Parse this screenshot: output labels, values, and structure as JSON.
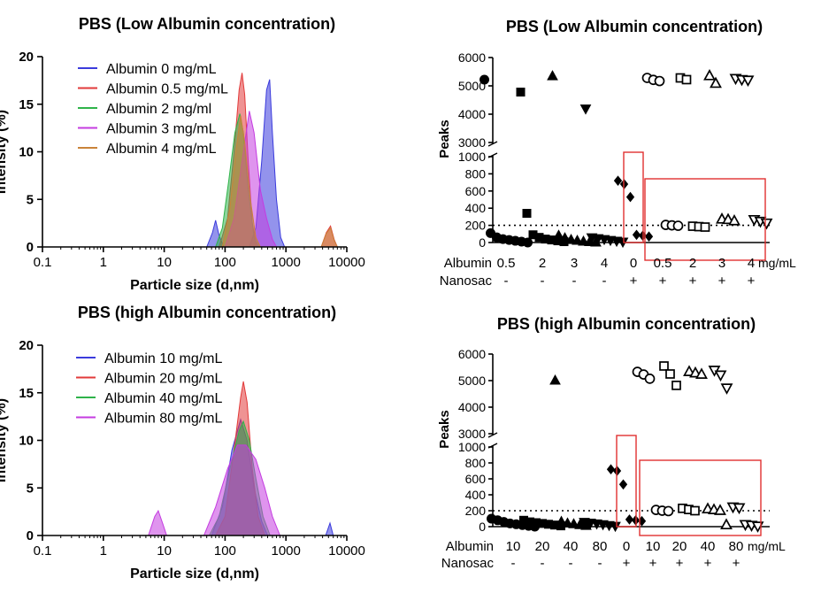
{
  "chart_data": [
    {
      "type": "area",
      "title": "PBS (Low Albumin concentration)",
      "xlabel": "Particle size (d,nm)",
      "ylabel": "Intensity (%)",
      "x_scale": "log",
      "xlim": [
        0.1,
        10000
      ],
      "ylim": [
        0,
        20
      ],
      "xticks": [
        "0.1",
        "1",
        "10",
        "100",
        "1000",
        "10000"
      ],
      "yticks": [
        "0",
        "5",
        "10",
        "15",
        "20"
      ],
      "legend_position": "top-left",
      "series": [
        {
          "name": "Albumin 0 mg/mL",
          "color": "#3b3bdc",
          "points": [
            [
              0.1,
              0
            ],
            [
              50,
              0
            ],
            [
              62,
              1.5
            ],
            [
              70,
              2.8
            ],
            [
              80,
              1.2
            ],
            [
              95,
              0
            ],
            [
              250,
              0
            ],
            [
              320,
              2
            ],
            [
              400,
              9
            ],
            [
              480,
              16.5
            ],
            [
              540,
              17.6
            ],
            [
              600,
              12
            ],
            [
              700,
              5
            ],
            [
              820,
              1
            ],
            [
              950,
              0
            ],
            [
              10000,
              0
            ]
          ]
        },
        {
          "name": "Albumin 0.5 mg/mL",
          "color": "#e23a3a",
          "points": [
            [
              0.1,
              0
            ],
            [
              80,
              0
            ],
            [
              110,
              3
            ],
            [
              140,
              10
            ],
            [
              170,
              16.5
            ],
            [
              190,
              18.3
            ],
            [
              210,
              16
            ],
            [
              240,
              9
            ],
            [
              280,
              2.5
            ],
            [
              330,
              0
            ],
            [
              3800,
              0
            ],
            [
              4600,
              1.5
            ],
            [
              5400,
              2.2
            ],
            [
              6200,
              0.8
            ],
            [
              7000,
              0
            ],
            [
              10000,
              0
            ]
          ]
        },
        {
          "name": "Albumin 2 mg/ml",
          "color": "#2fb34a",
          "points": [
            [
              0.1,
              0
            ],
            [
              70,
              0
            ],
            [
              90,
              2
            ],
            [
              115,
              7
            ],
            [
              145,
              12
            ],
            [
              175,
              14
            ],
            [
              200,
              12
            ],
            [
              240,
              6
            ],
            [
              300,
              1
            ],
            [
              360,
              0
            ],
            [
              10000,
              0
            ]
          ]
        },
        {
          "name": "Albumin 3 mg/mL",
          "color": "#c43ce0",
          "points": [
            [
              0.1,
              0
            ],
            [
              100,
              0
            ],
            [
              140,
              3
            ],
            [
              200,
              10
            ],
            [
              250,
              14.3
            ],
            [
              300,
              12
            ],
            [
              380,
              6
            ],
            [
              480,
              3
            ],
            [
              600,
              0.8
            ],
            [
              700,
              0
            ],
            [
              10000,
              0
            ]
          ]
        },
        {
          "name": "Albumin 4 mg/mL",
          "color": "#c9843a",
          "points": [
            [
              0.1,
              0
            ],
            [
              90,
              0
            ],
            [
              120,
              4
            ],
            [
              150,
              10
            ],
            [
              180,
              13.8
            ],
            [
              210,
              11
            ],
            [
              260,
              5
            ],
            [
              320,
              1
            ],
            [
              380,
              0
            ],
            [
              3800,
              0
            ],
            [
              4600,
              1.4
            ],
            [
              5400,
              2
            ],
            [
              6200,
              0.7
            ],
            [
              7000,
              0
            ],
            [
              10000,
              0
            ]
          ]
        }
      ]
    },
    {
      "type": "area",
      "title": "PBS (high Albumin concentration)",
      "xlabel": "Particle size (d,nm)",
      "ylabel": "Intensity (%)",
      "x_scale": "log",
      "xlim": [
        0.1,
        10000
      ],
      "ylim": [
        0,
        20
      ],
      "xticks": [
        "0.1",
        "1",
        "10",
        "100",
        "1000",
        "10000"
      ],
      "yticks": [
        "0",
        "5",
        "10",
        "15",
        "20"
      ],
      "legend_position": "top-left",
      "series": [
        {
          "name": "Albumin 10 mg/mL",
          "color": "#3b3bdc",
          "points": [
            [
              0.1,
              0
            ],
            [
              60,
              0
            ],
            [
              90,
              3
            ],
            [
              130,
              9
            ],
            [
              180,
              12.2
            ],
            [
              230,
              10
            ],
            [
              300,
              5
            ],
            [
              400,
              1.5
            ],
            [
              500,
              0
            ],
            [
              4500,
              0
            ],
            [
              5300,
              1.3
            ],
            [
              6000,
              0
            ],
            [
              10000,
              0
            ]
          ]
        },
        {
          "name": "Albumin 20 mg/mL",
          "color": "#e23a3a",
          "points": [
            [
              0.1,
              0
            ],
            [
              70,
              0
            ],
            [
              100,
              2
            ],
            [
              140,
              9
            ],
            [
              180,
              14.5
            ],
            [
              200,
              16.2
            ],
            [
              230,
              14
            ],
            [
              280,
              7
            ],
            [
              350,
              2
            ],
            [
              450,
              0
            ],
            [
              10000,
              0
            ]
          ]
        },
        {
          "name": "Albumin 40 mg/mL",
          "color": "#2fb34a",
          "points": [
            [
              0.1,
              0
            ],
            [
              55,
              0
            ],
            [
              80,
              2
            ],
            [
              120,
              7
            ],
            [
              170,
              11
            ],
            [
              200,
              12
            ],
            [
              250,
              10
            ],
            [
              320,
              6
            ],
            [
              420,
              2
            ],
            [
              550,
              0
            ],
            [
              10000,
              0
            ]
          ]
        },
        {
          "name": "Albumin 80 mg/mL",
          "color": "#c43ce0",
          "points": [
            [
              0.1,
              0
            ],
            [
              5.5,
              0
            ],
            [
              7,
              2
            ],
            [
              8,
              2.6
            ],
            [
              9.5,
              1.2
            ],
            [
              11,
              0
            ],
            [
              45,
              0
            ],
            [
              70,
              3
            ],
            [
              110,
              7
            ],
            [
              160,
              9.5
            ],
            [
              220,
              9.5
            ],
            [
              320,
              8
            ],
            [
              450,
              5
            ],
            [
              600,
              2
            ],
            [
              800,
              0
            ],
            [
              10000,
              0
            ]
          ]
        }
      ]
    },
    {
      "type": "scatter",
      "title": "PBS (Low Albumin concentration)",
      "ylabel": "Peaks",
      "axis_break": true,
      "upper_ylim": [
        3000,
        6000
      ],
      "lower_ylim": [
        0,
        1000
      ],
      "upper_ticks": [
        "3000",
        "4000",
        "5000",
        "6000"
      ],
      "lower_ticks": [
        "0",
        "200",
        "400",
        "600",
        "800",
        "1000"
      ],
      "reference_line": 200,
      "row_labels": [
        "Albumin",
        "Nanosac"
      ],
      "unit": "mg/mL",
      "groups": [
        {
          "albumin": "0.5",
          "nanosac": "-",
          "marker": "circle",
          "filled": true,
          "values": [
            5220,
            110,
            60,
            40,
            30,
            20,
            10,
            0
          ]
        },
        {
          "albumin": "2",
          "nanosac": "-",
          "marker": "square",
          "filled": true,
          "values": [
            4780,
            340,
            90,
            60,
            40,
            30,
            20,
            10
          ]
        },
        {
          "albumin": "3",
          "nanosac": "-",
          "marker": "triangle-up",
          "filled": true,
          "values": [
            5340,
            80,
            50,
            30,
            20,
            10,
            5,
            0
          ]
        },
        {
          "albumin": "4",
          "nanosac": "-",
          "marker": "triangle-down",
          "filled": true,
          "values": [
            4200,
            60,
            50,
            40,
            30,
            20,
            10
          ]
        },
        {
          "albumin": "0",
          "nanosac": "+",
          "marker": "diamond",
          "filled": true,
          "values": [
            720,
            680,
            530,
            90,
            80,
            70
          ]
        },
        {
          "albumin": "0.5",
          "nanosac": "+",
          "marker": "circle",
          "filled": false,
          "values": [
            5280,
            5210,
            5170,
            205,
            200,
            195
          ]
        },
        {
          "albumin": "2",
          "nanosac": "+",
          "marker": "square",
          "filled": false,
          "values": [
            5280,
            5220,
            190,
            185,
            180
          ]
        },
        {
          "albumin": "3",
          "nanosac": "+",
          "marker": "triangle-up",
          "filled": false,
          "values": [
            5350,
            5080,
            270,
            265,
            250
          ]
        },
        {
          "albumin": "4",
          "nanosac": "+",
          "marker": "triangle-down",
          "filled": false,
          "values": [
            5270,
            5230,
            5210,
            270,
            250,
            230
          ]
        }
      ]
    },
    {
      "type": "scatter",
      "title": "PBS (high Albumin concentration)",
      "ylabel": "Peaks",
      "axis_break": true,
      "upper_ylim": [
        3000,
        6000
      ],
      "lower_ylim": [
        0,
        1000
      ],
      "upper_ticks": [
        "3000",
        "4000",
        "5000",
        "6000"
      ],
      "lower_ticks": [
        "0",
        "200",
        "400",
        "600",
        "800",
        "1000"
      ],
      "reference_line": 200,
      "row_labels": [
        "Albumin",
        "Nanosac"
      ],
      "unit": "mg/mL",
      "groups": [
        {
          "albumin": "10",
          "nanosac": "-",
          "marker": "circle",
          "filled": true,
          "values": [
            100,
            80,
            60,
            40,
            30,
            20,
            10,
            0
          ]
        },
        {
          "albumin": "20",
          "nanosac": "-",
          "marker": "square",
          "filled": true,
          "values": [
            80,
            60,
            50,
            40,
            30,
            20,
            10
          ]
        },
        {
          "albumin": "40",
          "nanosac": "-",
          "marker": "triangle-up",
          "filled": true,
          "values": [
            5000,
            60,
            40,
            30,
            20,
            10
          ]
        },
        {
          "albumin": "80",
          "nanosac": "-",
          "marker": "triangle-down",
          "filled": true,
          "values": [
            60,
            50,
            40,
            30,
            20,
            10
          ]
        },
        {
          "albumin": "0",
          "nanosac": "+",
          "marker": "diamond",
          "filled": true,
          "values": [
            720,
            700,
            530,
            90,
            80,
            70
          ]
        },
        {
          "albumin": "10",
          "nanosac": "+",
          "marker": "circle",
          "filled": false,
          "values": [
            5330,
            5230,
            5070,
            210,
            200,
            195
          ]
        },
        {
          "albumin": "20",
          "nanosac": "+",
          "marker": "square",
          "filled": false,
          "values": [
            5550,
            5250,
            4820,
            230,
            215,
            200
          ]
        },
        {
          "albumin": "40",
          "nanosac": "+",
          "marker": "triangle-up",
          "filled": false,
          "values": [
            5330,
            5280,
            5230,
            220,
            210,
            200,
            20
          ]
        },
        {
          "albumin": "80",
          "nanosac": "+",
          "marker": "triangle-down",
          "filled": false,
          "values": [
            5400,
            5220,
            4730,
            250,
            240,
            30,
            20,
            10
          ]
        }
      ]
    }
  ]
}
